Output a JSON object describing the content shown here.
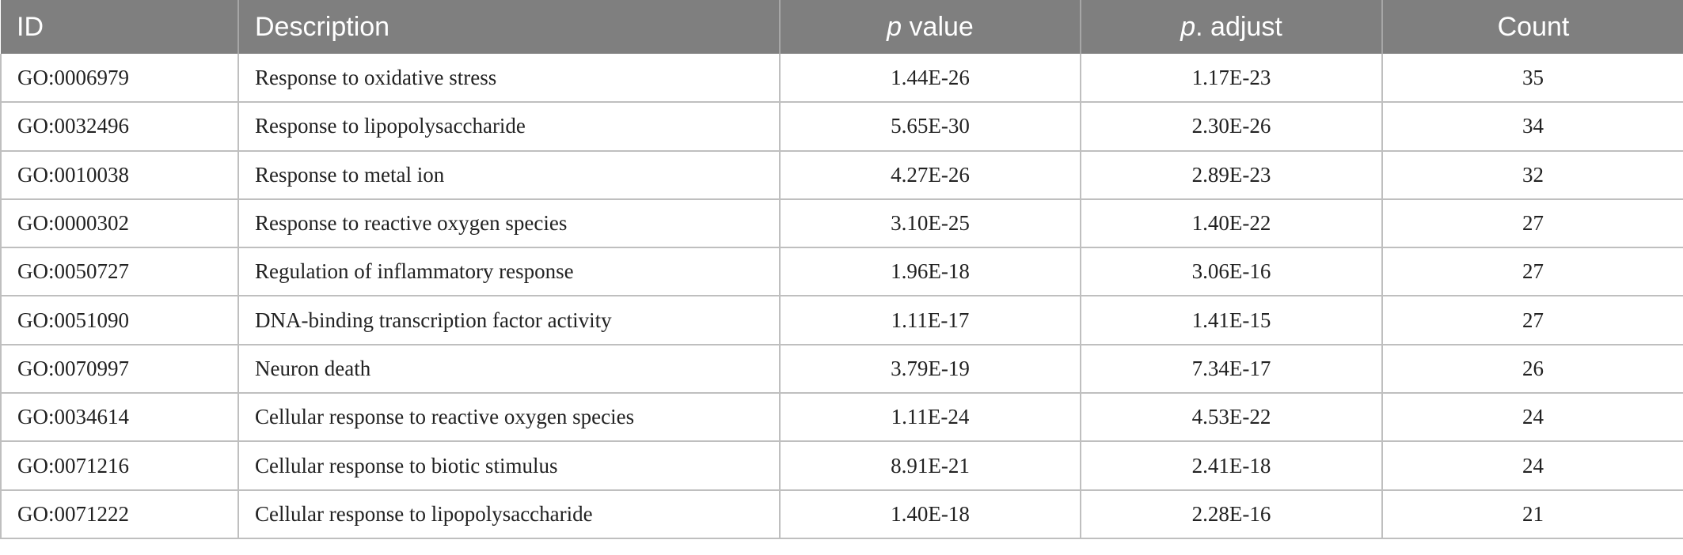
{
  "table": {
    "headers": {
      "id": "ID",
      "description": "Description",
      "p_value_italic": "p",
      "p_value_rest": " value",
      "p_adjust_italic": "p",
      "p_adjust_rest": ". adjust",
      "count": "Count"
    },
    "rows": [
      {
        "id": "GO:0006979",
        "description": "Response to oxidative stress",
        "p_value": "1.44E-26",
        "p_adjust": "1.17E-23",
        "count": "35"
      },
      {
        "id": "GO:0032496",
        "description": "Response to lipopolysaccharide",
        "p_value": "5.65E-30",
        "p_adjust": "2.30E-26",
        "count": "34"
      },
      {
        "id": "GO:0010038",
        "description": "Response to metal ion",
        "p_value": "4.27E-26",
        "p_adjust": "2.89E-23",
        "count": "32"
      },
      {
        "id": "GO:0000302",
        "description": "Response to reactive oxygen species",
        "p_value": "3.10E-25",
        "p_adjust": "1.40E-22",
        "count": "27"
      },
      {
        "id": "GO:0050727",
        "description": "Regulation of inflammatory response",
        "p_value": "1.96E-18",
        "p_adjust": "3.06E-16",
        "count": "27"
      },
      {
        "id": "GO:0051090",
        "description": "DNA-binding transcription factor activity",
        "p_value": "1.11E-17",
        "p_adjust": "1.41E-15",
        "count": "27"
      },
      {
        "id": "GO:0070997",
        "description": "Neuron death",
        "p_value": "3.79E-19",
        "p_adjust": "7.34E-17",
        "count": "26"
      },
      {
        "id": "GO:0034614",
        "description": "Cellular response to reactive oxygen species",
        "p_value": "1.11E-24",
        "p_adjust": "4.53E-22",
        "count": "24"
      },
      {
        "id": "GO:0071216",
        "description": "Cellular response to biotic stimulus",
        "p_value": "8.91E-21",
        "p_adjust": "2.41E-18",
        "count": "24"
      },
      {
        "id": "GO:0071222",
        "description": "Cellular response to lipopolysaccharide",
        "p_value": "1.40E-18",
        "p_adjust": "2.28E-16",
        "count": "21"
      }
    ]
  },
  "colors": {
    "header_bg": "#7f7f7f",
    "header_text": "#ffffff",
    "grid_line": "#bfbfbf"
  }
}
